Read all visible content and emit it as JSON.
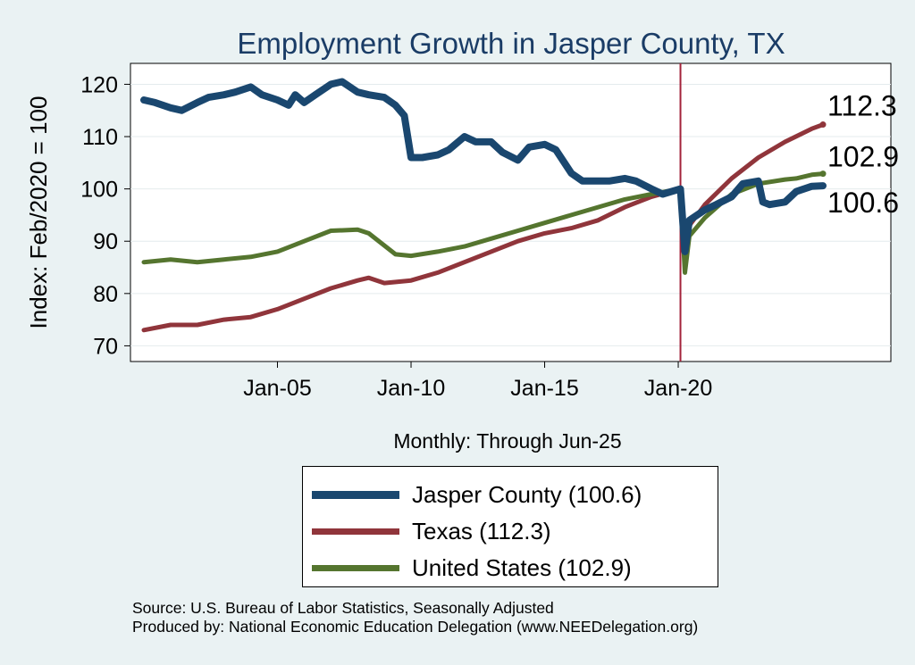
{
  "chart_data": {
    "type": "line",
    "title": "Employment Growth in Jasper  County, TX",
    "ylabel": "Index: Feb/2020 = 100",
    "xlabel": "Monthly: Through Jun-25",
    "x_range": [
      "2000-01",
      "2025-06"
    ],
    "ylim": [
      67,
      124
    ],
    "yticks": [
      70,
      80,
      90,
      100,
      110,
      120
    ],
    "xticks": [
      {
        "date": "2005-01",
        "label": "Jan-05"
      },
      {
        "date": "2010-01",
        "label": "Jan-10"
      },
      {
        "date": "2015-01",
        "label": "Jan-15"
      },
      {
        "date": "2020-01",
        "label": "Jan-20"
      }
    ],
    "vline": "2020-02",
    "grid": true,
    "legend_position": "bottom-center",
    "series": [
      {
        "name": "Jasper  County (100.6)",
        "color": "#1a476f",
        "end_label": "100.6",
        "points": [
          [
            "2000-01",
            117
          ],
          [
            "2000-06",
            116.5
          ],
          [
            "2001-01",
            115.5
          ],
          [
            "2001-06",
            115
          ],
          [
            "2002-01",
            116.5
          ],
          [
            "2002-06",
            117.5
          ],
          [
            "2003-01",
            118
          ],
          [
            "2003-06",
            118.5
          ],
          [
            "2004-01",
            119.5
          ],
          [
            "2004-06",
            118
          ],
          [
            "2005-01",
            117
          ],
          [
            "2005-06",
            116
          ],
          [
            "2005-09",
            118
          ],
          [
            "2006-01",
            116.5
          ],
          [
            "2006-06",
            118
          ],
          [
            "2007-01",
            120
          ],
          [
            "2007-06",
            120.5
          ],
          [
            "2008-01",
            118.5
          ],
          [
            "2008-06",
            118
          ],
          [
            "2009-01",
            117.5
          ],
          [
            "2009-06",
            116
          ],
          [
            "2009-10",
            114
          ],
          [
            "2010-01",
            106
          ],
          [
            "2010-06",
            106
          ],
          [
            "2011-01",
            106.5
          ],
          [
            "2011-06",
            107.5
          ],
          [
            "2012-01",
            110
          ],
          [
            "2012-06",
            109
          ],
          [
            "2013-01",
            109
          ],
          [
            "2013-06",
            107
          ],
          [
            "2014-01",
            105.5
          ],
          [
            "2014-06",
            108
          ],
          [
            "2015-01",
            108.5
          ],
          [
            "2015-06",
            107.5
          ],
          [
            "2016-01",
            103
          ],
          [
            "2016-06",
            101.5
          ],
          [
            "2017-01",
            101.5
          ],
          [
            "2017-06",
            101.5
          ],
          [
            "2018-01",
            102
          ],
          [
            "2018-06",
            101.5
          ],
          [
            "2019-01",
            100
          ],
          [
            "2019-06",
            99
          ],
          [
            "2020-02",
            100
          ],
          [
            "2020-04",
            88
          ],
          [
            "2020-06",
            94
          ],
          [
            "2021-01",
            96
          ],
          [
            "2021-06",
            97
          ],
          [
            "2022-01",
            98.5
          ],
          [
            "2022-06",
            101
          ],
          [
            "2023-01",
            101.5
          ],
          [
            "2023-03",
            97.5
          ],
          [
            "2023-06",
            97
          ],
          [
            "2024-01",
            97.5
          ],
          [
            "2024-06",
            99.5
          ],
          [
            "2025-01",
            100.5
          ],
          [
            "2025-06",
            100.6
          ]
        ]
      },
      {
        "name": "Texas (112.3)",
        "color": "#90353b",
        "end_label": "112.3",
        "points": [
          [
            "2000-01",
            73
          ],
          [
            "2001-01",
            74
          ],
          [
            "2002-01",
            74
          ],
          [
            "2003-01",
            75
          ],
          [
            "2004-01",
            75.5
          ],
          [
            "2005-01",
            77
          ],
          [
            "2006-01",
            79
          ],
          [
            "2007-01",
            81
          ],
          [
            "2008-01",
            82.5
          ],
          [
            "2008-06",
            83
          ],
          [
            "2009-01",
            82
          ],
          [
            "2010-01",
            82.5
          ],
          [
            "2011-01",
            84
          ],
          [
            "2012-01",
            86
          ],
          [
            "2013-01",
            88
          ],
          [
            "2014-01",
            90
          ],
          [
            "2015-01",
            91.5
          ],
          [
            "2016-01",
            92.5
          ],
          [
            "2017-01",
            94
          ],
          [
            "2018-01",
            96.5
          ],
          [
            "2019-01",
            98.5
          ],
          [
            "2020-02",
            100
          ],
          [
            "2020-04",
            87
          ],
          [
            "2020-06",
            93
          ],
          [
            "2021-01",
            97
          ],
          [
            "2022-01",
            102
          ],
          [
            "2023-01",
            106
          ],
          [
            "2024-01",
            109
          ],
          [
            "2025-01",
            111.5
          ],
          [
            "2025-06",
            112.3
          ]
        ]
      },
      {
        "name": "United States (102.9)",
        "color": "#55752f",
        "end_label": "102.9",
        "points": [
          [
            "2000-01",
            86
          ],
          [
            "2001-01",
            86.5
          ],
          [
            "2002-01",
            86
          ],
          [
            "2003-01",
            86.5
          ],
          [
            "2004-01",
            87
          ],
          [
            "2005-01",
            88
          ],
          [
            "2006-01",
            90
          ],
          [
            "2007-01",
            92
          ],
          [
            "2008-01",
            92.2
          ],
          [
            "2008-06",
            91.5
          ],
          [
            "2009-06",
            87.5
          ],
          [
            "2010-01",
            87.2
          ],
          [
            "2011-01",
            88
          ],
          [
            "2012-01",
            89
          ],
          [
            "2013-01",
            90.5
          ],
          [
            "2014-01",
            92
          ],
          [
            "2015-01",
            93.5
          ],
          [
            "2016-01",
            95
          ],
          [
            "2017-01",
            96.5
          ],
          [
            "2018-01",
            98
          ],
          [
            "2019-01",
            99
          ],
          [
            "2020-02",
            100
          ],
          [
            "2020-04",
            84
          ],
          [
            "2020-06",
            91
          ],
          [
            "2021-01",
            94.5
          ],
          [
            "2022-01",
            99
          ],
          [
            "2023-01",
            101
          ],
          [
            "2024-01",
            101.8
          ],
          [
            "2024-06",
            102
          ],
          [
            "2025-01",
            102.7
          ],
          [
            "2025-06",
            102.9
          ]
        ]
      }
    ]
  },
  "source": {
    "line1": "Source: U.S. Bureau of Labor Statistics, Seasonally Adjusted",
    "line2": "Produced by: National Economic Education Delegation (www.NEEDelegation.org)"
  }
}
